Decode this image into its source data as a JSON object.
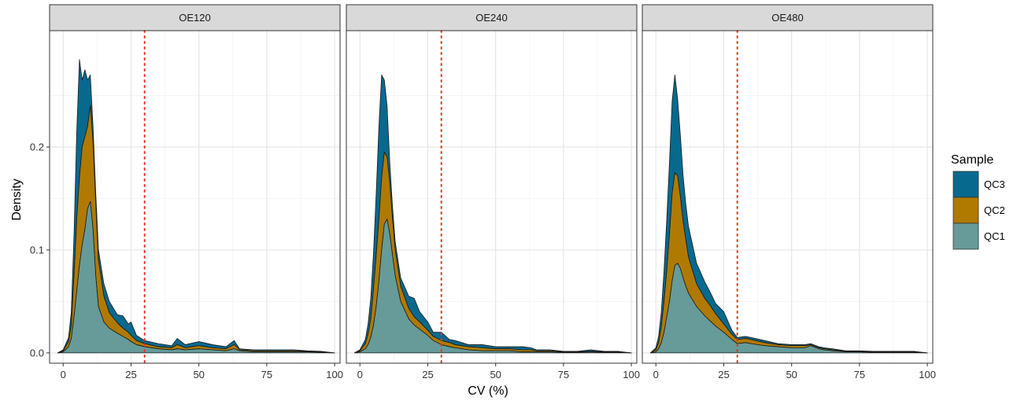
{
  "chart_data": {
    "type": "area",
    "stacked": true,
    "xlabel": "CV (%)",
    "ylabel": "Density",
    "xlim": [
      -5,
      102
    ],
    "ylim": [
      -0.01,
      0.313
    ],
    "x_ticks": [
      0,
      25,
      50,
      75,
      100
    ],
    "y_ticks": [
      0.0,
      0.1,
      0.2
    ],
    "y_tick_labels": [
      "0.0",
      "0.1",
      "0.2"
    ],
    "grid": true,
    "reference_line": {
      "x": 30,
      "style": "dotted",
      "color": "#e8312f"
    },
    "legend": {
      "title": "Sample",
      "position": "right",
      "entries": [
        {
          "name": "QC3",
          "color": "#08698f"
        },
        {
          "name": "QC2",
          "color": "#b07a00"
        },
        {
          "name": "QC1",
          "color": "#669b9a"
        }
      ]
    },
    "panels": [
      {
        "label": "OE120",
        "x": [
          -2,
          0,
          2,
          3,
          4,
          5,
          6,
          7,
          8,
          9,
          10,
          11,
          12,
          13,
          15,
          17,
          20,
          22,
          24,
          25,
          27,
          30,
          35,
          40,
          42,
          45,
          50,
          55,
          60,
          63,
          65,
          70,
          75,
          80,
          85,
          90,
          95,
          100
        ],
        "series": [
          {
            "name": "QC1",
            "values": [
              0,
              0.001,
              0.006,
              0.014,
              0.035,
              0.06,
              0.085,
              0.105,
              0.12,
              0.14,
              0.147,
              0.12,
              0.075,
              0.045,
              0.03,
              0.024,
              0.019,
              0.016,
              0.013,
              0.011,
              0.008,
              0.006,
              0.004,
              0.003,
              0.004,
              0.003,
              0.004,
              0.003,
              0.002,
              0.004,
              0.002,
              0.001,
              0.001,
              0.001,
              0.001,
              0.001,
              0.0005,
              0
            ]
          },
          {
            "name": "QC2",
            "values": [
              0,
              0.001,
              0.005,
              0.013,
              0.04,
              0.07,
              0.085,
              0.095,
              0.09,
              0.08,
              0.093,
              0.085,
              0.07,
              0.045,
              0.025,
              0.015,
              0.01,
              0.008,
              0.007,
              0.006,
              0.004,
              0.003,
              0.002,
              0.002,
              0.004,
              0.002,
              0.003,
              0.002,
              0.002,
              0.004,
              0.001,
              0.001,
              0.001,
              0.001,
              0.001,
              0.0005,
              0.0005,
              0
            ]
          },
          {
            "name": "QC3",
            "values": [
              0,
              0.001,
              0.004,
              0.013,
              0.04,
              0.085,
              0.115,
              0.065,
              0.065,
              0.045,
              0.03,
              0.015,
              0.01,
              0.01,
              0.012,
              0.011,
              0.008,
              0.012,
              0.008,
              0.013,
              0.005,
              0.003,
              0.003,
              0.002,
              0.006,
              0.003,
              0.004,
              0.003,
              0.002,
              0.004,
              0.001,
              0.001,
              0.001,
              0.001,
              0.001,
              0.0005,
              0.0005,
              0
            ]
          }
        ]
      },
      {
        "label": "OE240",
        "x": [
          -2,
          0,
          2,
          3,
          4,
          5,
          6,
          7,
          8,
          9,
          10,
          11,
          12,
          13,
          15,
          18,
          20,
          22,
          25,
          27,
          30,
          33,
          35,
          40,
          45,
          50,
          55,
          60,
          63,
          65,
          70,
          75,
          80,
          85,
          90,
          95,
          100
        ],
        "series": [
          {
            "name": "QC1",
            "values": [
              0,
              0.001,
              0.004,
              0.008,
              0.015,
              0.027,
              0.045,
              0.07,
              0.1,
              0.125,
              0.13,
              0.115,
              0.095,
              0.075,
              0.05,
              0.033,
              0.027,
              0.023,
              0.017,
              0.012,
              0.008,
              0.006,
              0.005,
              0.003,
              0.002,
              0.002,
              0.002,
              0.001,
              0.001,
              0.001,
              0.001,
              0.0005,
              0.0005,
              0.001,
              0.0005,
              0.0005,
              0
            ]
          },
          {
            "name": "QC2",
            "values": [
              0,
              0.001,
              0.005,
              0.01,
              0.018,
              0.035,
              0.05,
              0.06,
              0.07,
              0.07,
              0.06,
              0.05,
              0.035,
              0.025,
              0.015,
              0.01,
              0.008,
              0.007,
              0.005,
              0.004,
              0.004,
              0.004,
              0.003,
              0.003,
              0.003,
              0.002,
              0.002,
              0.002,
              0.002,
              0.001,
              0.001,
              0.0005,
              0.0005,
              0.0005,
              0.0005,
              0.0005,
              0
            ]
          },
          {
            "name": "QC3",
            "values": [
              0,
              0.001,
              0.004,
              0.01,
              0.02,
              0.035,
              0.06,
              0.09,
              0.1,
              0.07,
              0.05,
              0.02,
              0.012,
              0.008,
              0.008,
              0.012,
              0.018,
              0.01,
              0.008,
              0.004,
              0.008,
              0.003,
              0.004,
              0.002,
              0.003,
              0.002,
              0.002,
              0.003,
              0.002,
              0.001,
              0.001,
              0.0005,
              0.0005,
              0.0015,
              0.0005,
              0.0005,
              0
            ]
          }
        ]
      },
      {
        "label": "OE480",
        "x": [
          -2,
          0,
          1,
          2,
          3,
          4,
          5,
          6,
          7,
          8,
          9,
          10,
          11,
          12,
          15,
          18,
          20,
          22,
          25,
          28,
          30,
          33,
          35,
          40,
          45,
          50,
          55,
          57,
          60,
          62,
          65,
          70,
          75,
          80,
          85,
          90,
          95,
          100
        ],
        "series": [
          {
            "name": "QC1",
            "values": [
              0,
              0.001,
              0.004,
              0.01,
              0.02,
              0.035,
              0.05,
              0.07,
              0.085,
              0.087,
              0.082,
              0.073,
              0.065,
              0.058,
              0.045,
              0.036,
              0.031,
              0.026,
              0.02,
              0.013,
              0.009,
              0.01,
              0.009,
              0.007,
              0.006,
              0.005,
              0.005,
              0.007,
              0.004,
              0.003,
              0.002,
              0.001,
              0.001,
              0.0005,
              0.0005,
              0.0005,
              0.0005,
              0
            ]
          },
          {
            "name": "QC2",
            "values": [
              0,
              0.002,
              0.006,
              0.015,
              0.03,
              0.045,
              0.065,
              0.085,
              0.09,
              0.085,
              0.07,
              0.055,
              0.045,
              0.035,
              0.022,
              0.017,
              0.015,
              0.012,
              0.008,
              0.005,
              0.004,
              0.004,
              0.004,
              0.003,
              0.002,
              0.002,
              0.002,
              0.001,
              0.001,
              0.001,
              0.001,
              0.0005,
              0.0005,
              0.0005,
              0.0005,
              0.0005,
              0.0005,
              0
            ]
          },
          {
            "name": "QC3",
            "values": [
              0,
              0.002,
              0.006,
              0.015,
              0.03,
              0.05,
              0.07,
              0.09,
              0.095,
              0.075,
              0.06,
              0.045,
              0.035,
              0.03,
              0.02,
              0.016,
              0.013,
              0.01,
              0.012,
              0.004,
              0.002,
              0.002,
              0.002,
              0.002,
              0.001,
              0.001,
              0.001,
              0.001,
              0.001,
              0.001,
              0.001,
              0.0005,
              0.0005,
              0.0005,
              0.0005,
              0.0005,
              0.0005,
              0
            ]
          }
        ]
      }
    ]
  }
}
